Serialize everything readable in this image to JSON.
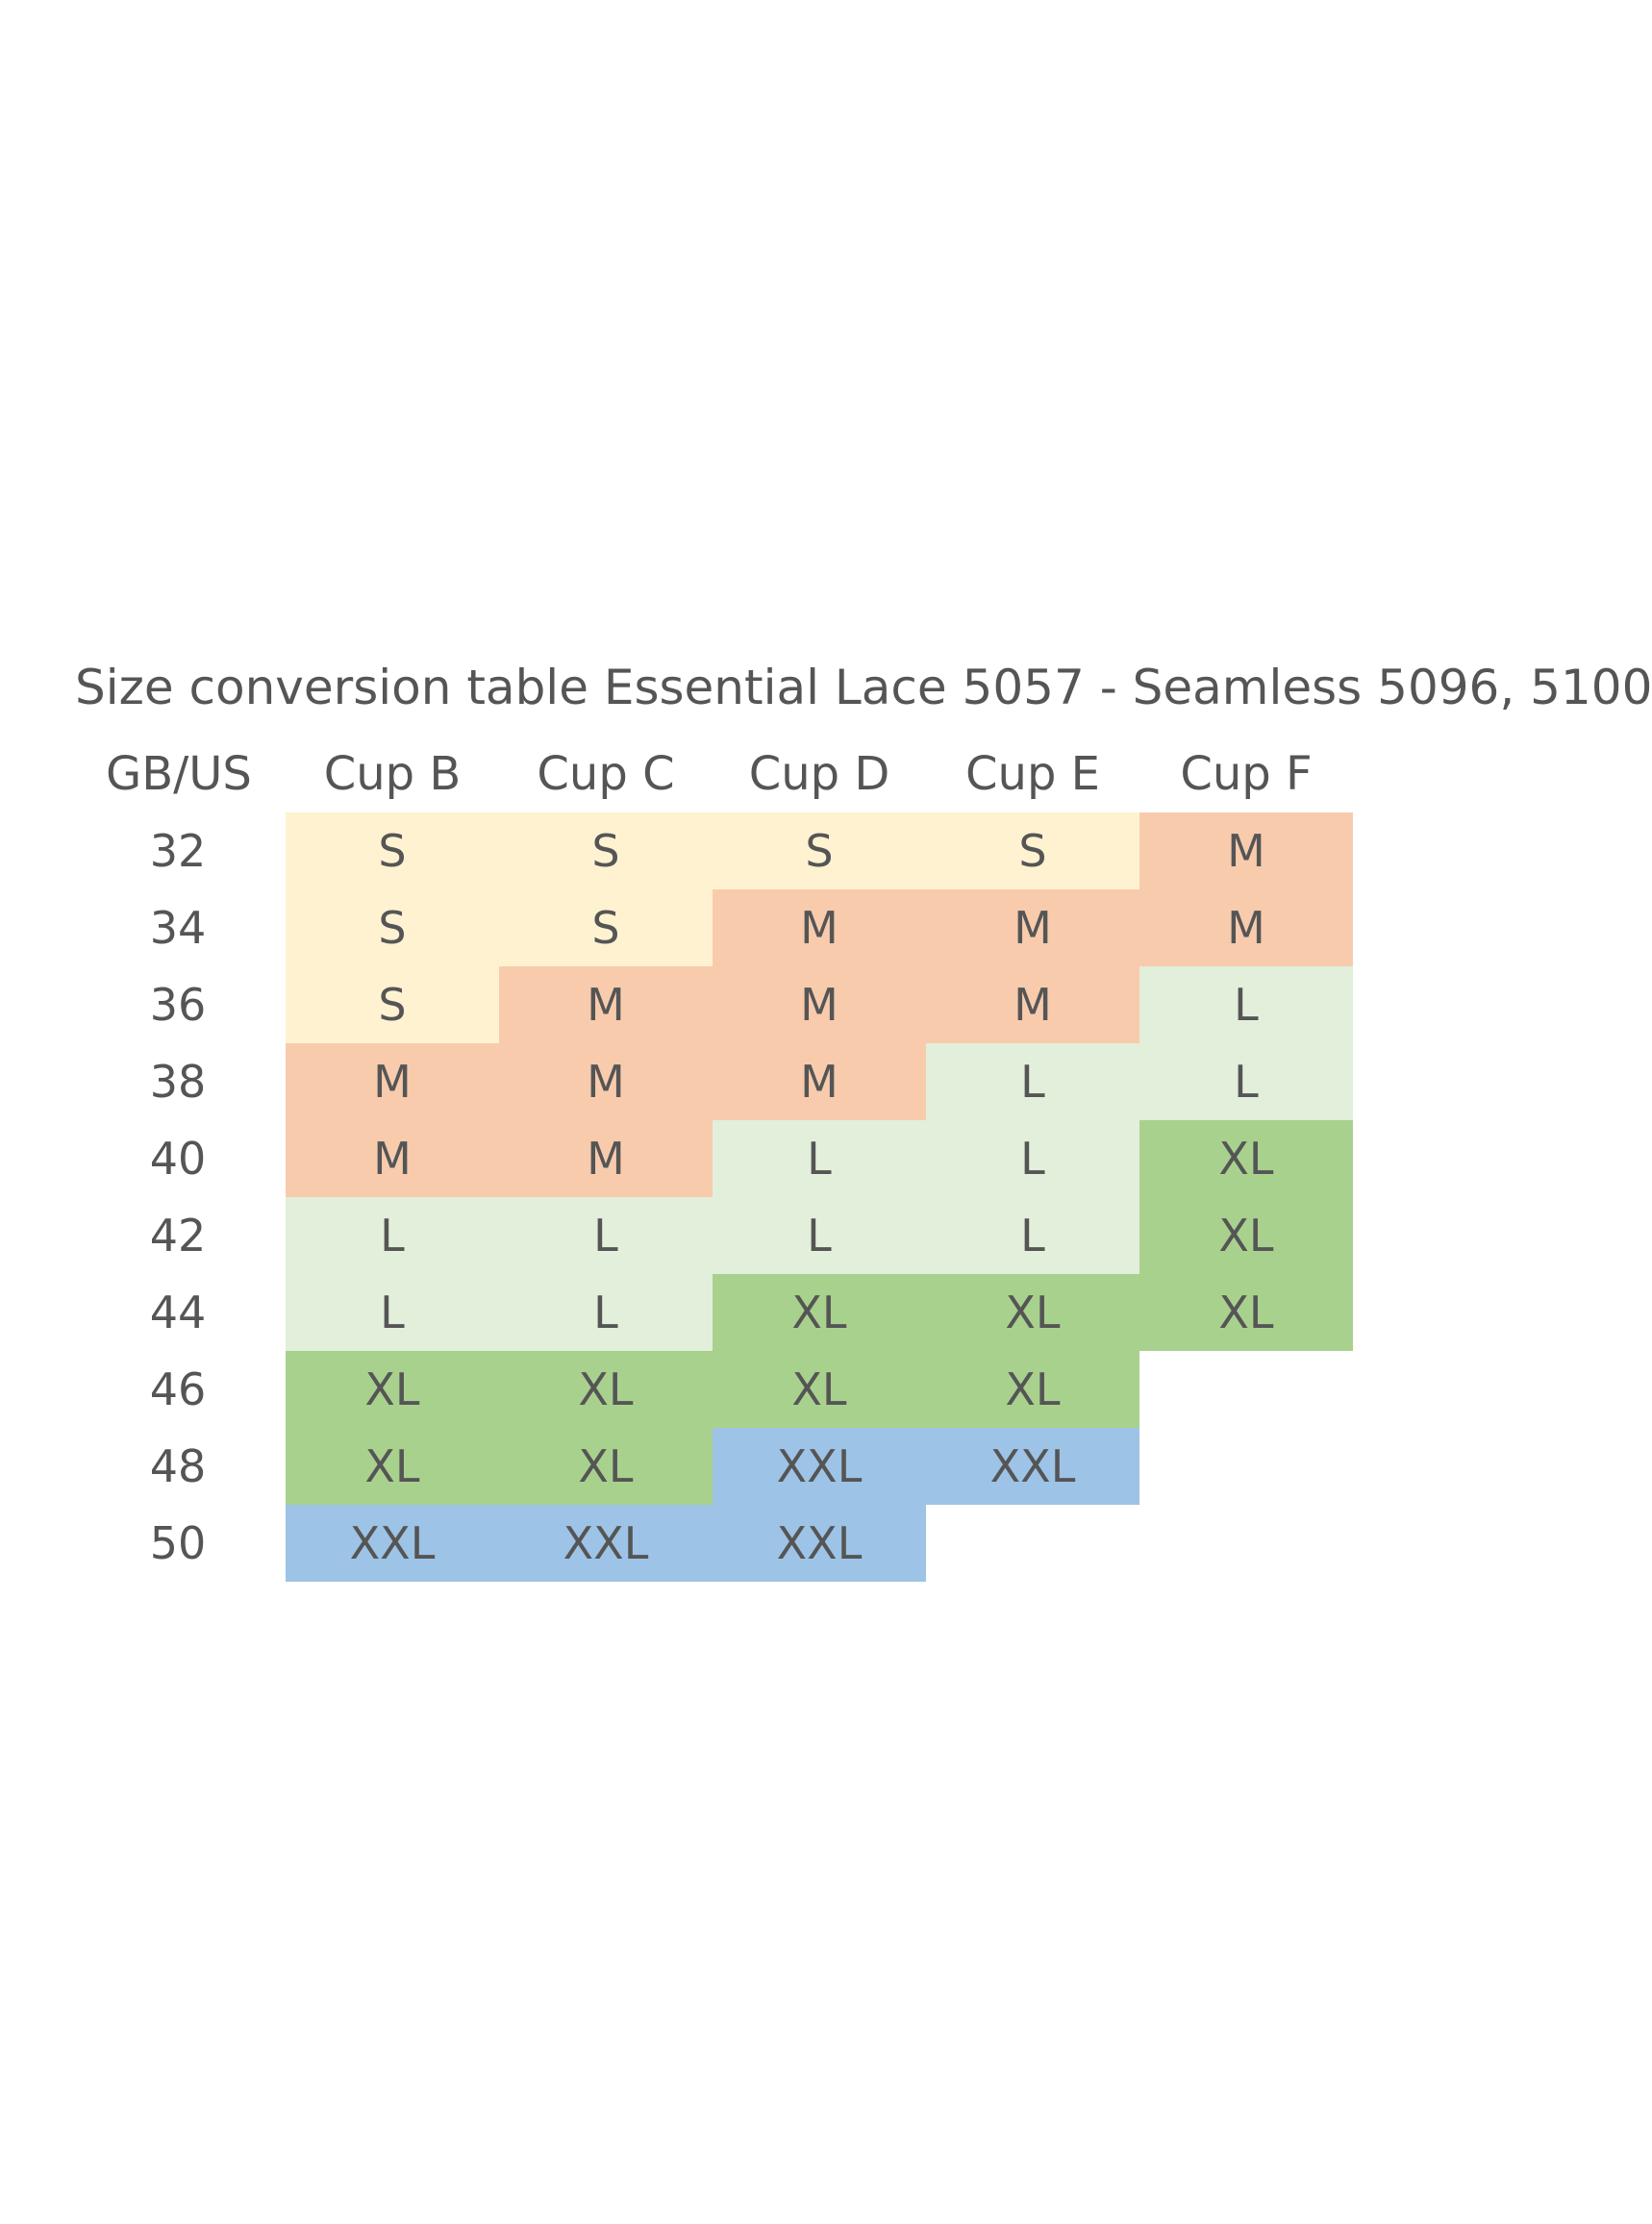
{
  "title": "Size conversion table Essential Lace 5057 - Seamless 5096, 5100",
  "headers": [
    "GB/US",
    "Cup B",
    "Cup C",
    "Cup D",
    "Cup E",
    "Cup F"
  ],
  "colors": {
    "S": "#fff2d1",
    "M": "#f8cbad",
    "L": "#e2efda",
    "XL": "#a9d18e",
    "XXL": "#9dc3e6"
  },
  "rows": [
    {
      "band": "32",
      "cells": [
        "S",
        "S",
        "S",
        "S",
        "M"
      ]
    },
    {
      "band": "34",
      "cells": [
        "S",
        "S",
        "M",
        "M",
        "M"
      ]
    },
    {
      "band": "36",
      "cells": [
        "S",
        "M",
        "M",
        "M",
        "L"
      ]
    },
    {
      "band": "38",
      "cells": [
        "M",
        "M",
        "M",
        "L",
        "L"
      ]
    },
    {
      "band": "40",
      "cells": [
        "M",
        "M",
        "L",
        "L",
        "XL"
      ]
    },
    {
      "band": "42",
      "cells": [
        "L",
        "L",
        "L",
        "L",
        "XL"
      ]
    },
    {
      "band": "44",
      "cells": [
        "L",
        "L",
        "XL",
        "XL",
        "XL"
      ]
    },
    {
      "band": "46",
      "cells": [
        "XL",
        "XL",
        "XL",
        "XL",
        ""
      ]
    },
    {
      "band": "48",
      "cells": [
        "XL",
        "XL",
        "XXL",
        "XXL",
        ""
      ]
    },
    {
      "band": "50",
      "cells": [
        "XXL",
        "XXL",
        "XXL",
        "",
        ""
      ]
    }
  ]
}
